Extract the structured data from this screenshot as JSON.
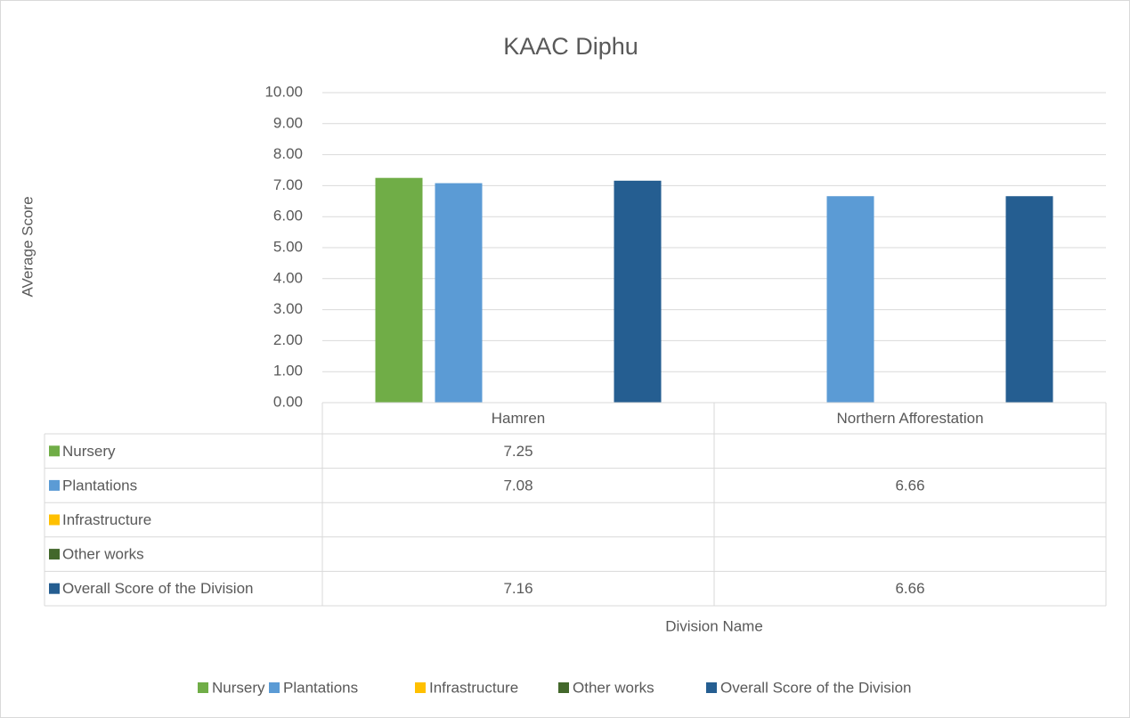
{
  "chart_data": {
    "type": "bar",
    "title": "KAAC Diphu",
    "x_label": "Division Name",
    "y_label": "AVerage Score",
    "categories": [
      "Hamren",
      "Northern Afforestation"
    ],
    "series": [
      {
        "name": "Nursery",
        "color": "#70ad47",
        "values": [
          7.25,
          null
        ]
      },
      {
        "name": "Plantations",
        "color": "#5b9bd5",
        "values": [
          7.08,
          6.66
        ]
      },
      {
        "name": "Infrastructure",
        "color": "#ffc000",
        "values": [
          null,
          null
        ]
      },
      {
        "name": "Other works",
        "color": "#43682b",
        "values": [
          null,
          null
        ]
      },
      {
        "name": "Overall Score of the Division",
        "color": "#255e91",
        "values": [
          7.16,
          6.66
        ]
      }
    ],
    "ylim": [
      0,
      10
    ],
    "yticks": [
      {
        "value": 0,
        "label": "0.00"
      },
      {
        "value": 1,
        "label": "1.00"
      },
      {
        "value": 2,
        "label": "2.00"
      },
      {
        "value": 3,
        "label": "3.00"
      },
      {
        "value": 4,
        "label": "4.00"
      },
      {
        "value": 5,
        "label": "5.00"
      },
      {
        "value": 6,
        "label": "6.00"
      },
      {
        "value": 7,
        "label": "7.00"
      },
      {
        "value": 8,
        "label": "8.00"
      },
      {
        "value": 9,
        "label": "9.00"
      },
      {
        "value": 10,
        "label": "10.00"
      }
    ],
    "grid": true,
    "legend": "bottom",
    "data_table": true
  }
}
